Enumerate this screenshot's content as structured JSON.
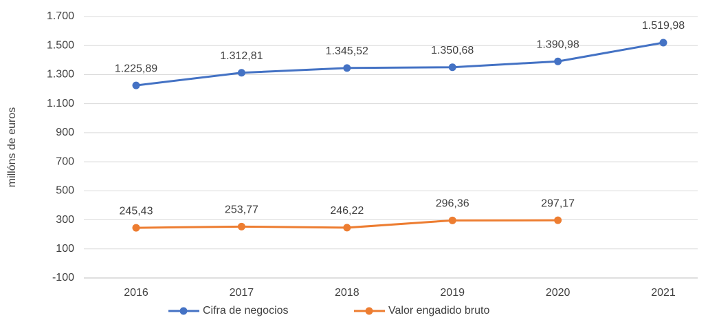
{
  "chart_data": {
    "type": "line",
    "y_label": "millóns de euros",
    "categories": [
      "2016",
      "2017",
      "2018",
      "2019",
      "2020",
      "2021"
    ],
    "series": [
      {
        "name": "Cifra de negocios",
        "color": "#4472c4",
        "values": [
          1225.89,
          1312.81,
          1345.52,
          1350.68,
          1390.98,
          1519.98
        ],
        "value_labels": [
          "1.225,89",
          "1.312,81",
          "1.345,52",
          "1.350,68",
          "1.390,98",
          "1.519,98"
        ]
      },
      {
        "name": "Valor engadido bruto",
        "color": "#ed7d31",
        "values": [
          245.43,
          253.77,
          246.22,
          296.36,
          297.17,
          null
        ],
        "value_labels": [
          "245,43",
          "253,77",
          "246,22",
          "296,36",
          "297,17",
          null
        ]
      }
    ],
    "ylim": [
      -100,
      1700
    ],
    "yticks": [
      -100,
      100,
      300,
      500,
      700,
      900,
      {
        "value": 1100,
        "label": "1.100"
      },
      {
        "value": 1300,
        "label": "1.300"
      },
      {
        "value": 1500,
        "label": "1.500"
      },
      {
        "value": 1700,
        "label": "1.700"
      }
    ],
    "grid": true,
    "legend": "bottom"
  }
}
